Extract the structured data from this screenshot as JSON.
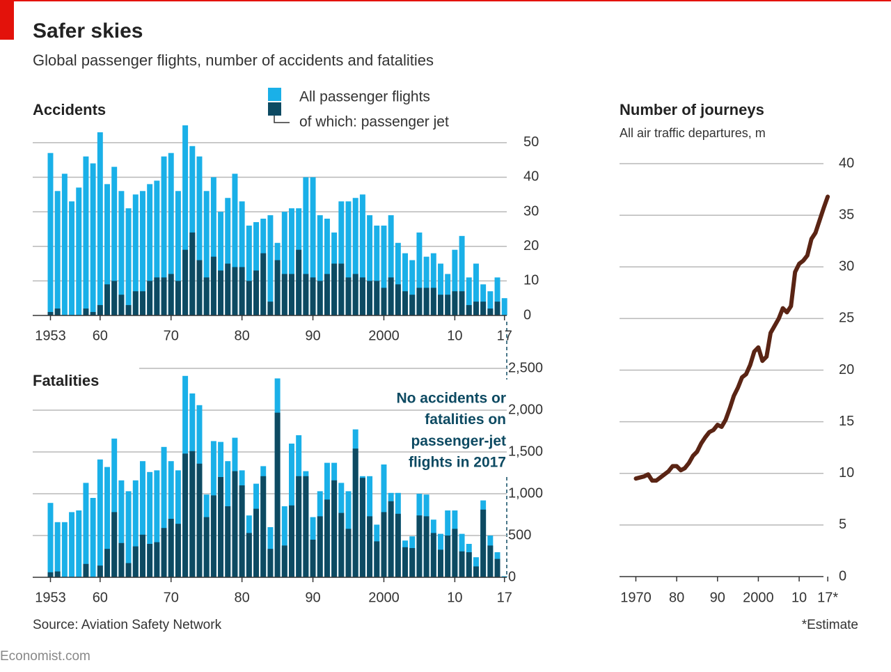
{
  "title": "Safer skies",
  "subtitle": "Global passenger flights, number of accidents and fatalities",
  "source": "Source: Aviation Safety Network",
  "note": "*Estimate",
  "brand": "Economist.com",
  "chart_data": [
    {
      "type": "bar",
      "title": "Accidents",
      "x": [
        1953,
        1954,
        1955,
        1956,
        1957,
        1958,
        1959,
        1960,
        1961,
        1962,
        1963,
        1964,
        1965,
        1966,
        1967,
        1968,
        1969,
        1970,
        1971,
        1972,
        1973,
        1974,
        1975,
        1976,
        1977,
        1978,
        1979,
        1980,
        1981,
        1982,
        1983,
        1984,
        1985,
        1986,
        1987,
        1988,
        1989,
        1990,
        1991,
        1992,
        1993,
        1994,
        1995,
        1996,
        1997,
        1998,
        1999,
        2000,
        2001,
        2002,
        2003,
        2004,
        2005,
        2006,
        2007,
        2008,
        2009,
        2010,
        2011,
        2012,
        2013,
        2014,
        2015,
        2016,
        2017
      ],
      "series": [
        {
          "name": "All passenger flights",
          "color": "#1ab0e8",
          "values": [
            47,
            36,
            41,
            33,
            37,
            46,
            44,
            53,
            38,
            43,
            36,
            31,
            35,
            36,
            38,
            39,
            46,
            47,
            36,
            55,
            49,
            46,
            36,
            40,
            30,
            34,
            41,
            33,
            26,
            27,
            28,
            29,
            21,
            30,
            31,
            31,
            40,
            40,
            29,
            28,
            24,
            33,
            33,
            34,
            35,
            29,
            26,
            26,
            29,
            21,
            18,
            16,
            24,
            17,
            18,
            15,
            12,
            19,
            23,
            11,
            15,
            9,
            7,
            11,
            5
          ]
        },
        {
          "name": "of which: passenger jet",
          "color": "#0d4a62",
          "values": [
            1,
            2,
            0,
            0,
            0,
            2,
            1,
            3,
            9,
            10,
            6,
            3,
            7,
            7,
            10,
            11,
            11,
            12,
            10,
            19,
            24,
            16,
            11,
            17,
            13,
            15,
            14,
            14,
            10,
            13,
            18,
            4,
            16,
            12,
            12,
            19,
            12,
            11,
            10,
            12,
            15,
            15,
            11,
            12,
            11,
            10,
            10,
            8,
            11,
            9,
            7,
            6,
            8,
            8,
            8,
            6,
            6,
            7,
            7,
            3,
            4,
            4,
            2,
            4,
            0
          ]
        }
      ],
      "xlim": [
        1950.5,
        2018.5
      ],
      "xticks": [
        1953,
        {
          "value": 1960,
          "label": "60"
        },
        {
          "value": 1970,
          "label": "70"
        },
        {
          "value": 1980,
          "label": "80"
        },
        {
          "value": 1990,
          "label": "90"
        },
        2000,
        {
          "value": 2010,
          "label": "10"
        },
        {
          "value": 2017,
          "label": "17"
        }
      ],
      "ylim": [
        0,
        55
      ],
      "yticks": [
        0,
        10,
        20,
        30,
        40,
        50
      ],
      "grid": true
    },
    {
      "type": "bar",
      "title": "Fatalities",
      "x": [
        1953,
        1954,
        1955,
        1956,
        1957,
        1958,
        1959,
        1960,
        1961,
        1962,
        1963,
        1964,
        1965,
        1966,
        1967,
        1968,
        1969,
        1970,
        1971,
        1972,
        1973,
        1974,
        1975,
        1976,
        1977,
        1978,
        1979,
        1980,
        1981,
        1982,
        1983,
        1984,
        1985,
        1986,
        1987,
        1988,
        1989,
        1990,
        1991,
        1992,
        1993,
        1994,
        1995,
        1996,
        1997,
        1998,
        1999,
        2000,
        2001,
        2002,
        2003,
        2004,
        2005,
        2006,
        2007,
        2008,
        2009,
        2010,
        2011,
        2012,
        2013,
        2014,
        2015,
        2016,
        2017
      ],
      "series": [
        {
          "color": "#1ab0e8",
          "values": [
            890,
            660,
            660,
            780,
            800,
            1130,
            950,
            1410,
            1320,
            1660,
            1160,
            1030,
            1160,
            1390,
            1260,
            1280,
            1560,
            1390,
            1280,
            2410,
            2200,
            2060,
            990,
            1630,
            1620,
            1390,
            1670,
            1280,
            740,
            1120,
            1330,
            600,
            2380,
            850,
            1600,
            1700,
            1270,
            720,
            1030,
            1370,
            1370,
            1130,
            1030,
            1770,
            1210,
            1210,
            630,
            1350,
            1010,
            1010,
            440,
            490,
            1000,
            990,
            690,
            520,
            800,
            800,
            520,
            400,
            240,
            920,
            500,
            300,
            13
          ]
        },
        {
          "color": "#0d4a62",
          "values": [
            60,
            70,
            0,
            0,
            0,
            160,
            0,
            140,
            340,
            780,
            410,
            170,
            370,
            510,
            400,
            420,
            590,
            700,
            640,
            1480,
            1510,
            1360,
            720,
            980,
            1200,
            850,
            1270,
            1100,
            530,
            820,
            1210,
            340,
            1970,
            380,
            860,
            1210,
            1210,
            450,
            730,
            930,
            1160,
            770,
            580,
            1540,
            1190,
            730,
            430,
            780,
            910,
            760,
            360,
            350,
            740,
            730,
            530,
            330,
            500,
            580,
            310,
            300,
            130,
            810,
            380,
            220,
            0
          ]
        }
      ],
      "annotation": [
        "No accidents or",
        "fatalities on",
        "passenger-jet",
        "flights in 2017"
      ],
      "xlim": [
        1950.5,
        2018.5
      ],
      "xticks": [
        1953,
        {
          "value": 1960,
          "label": "60"
        },
        {
          "value": 1970,
          "label": "70"
        },
        {
          "value": 1980,
          "label": "80"
        },
        {
          "value": 1990,
          "label": "90"
        },
        2000,
        {
          "value": 2010,
          "label": "10"
        },
        {
          "value": 2017,
          "label": "17"
        }
      ],
      "ylim": [
        0,
        2500
      ],
      "yticks": [
        0,
        500,
        {
          "value": 1000,
          "label": "1,000"
        },
        {
          "value": 1500,
          "label": "1,500"
        },
        {
          "value": 2000,
          "label": "2,000"
        },
        {
          "value": 2500,
          "label": "2,500"
        }
      ],
      "grid": true
    },
    {
      "type": "line",
      "title": "Number of journeys",
      "subtitle": "All air traffic departures, m",
      "x": [
        1970,
        1971,
        1972,
        1973,
        1974,
        1975,
        1976,
        1977,
        1978,
        1979,
        1980,
        1981,
        1982,
        1983,
        1984,
        1985,
        1986,
        1987,
        1988,
        1989,
        1990,
        1991,
        1992,
        1993,
        1994,
        1995,
        1996,
        1997,
        1998,
        1999,
        2000,
        2001,
        2002,
        2003,
        2004,
        2005,
        2006,
        2007,
        2008,
        2009,
        2010,
        2011,
        2012,
        2013,
        2014,
        2015,
        2016,
        2017
      ],
      "values": [
        9.5,
        9.6,
        9.7,
        9.9,
        9.3,
        9.3,
        9.6,
        9.9,
        10.2,
        10.7,
        10.7,
        10.3,
        10.5,
        11.0,
        11.7,
        12.1,
        12.9,
        13.5,
        14.0,
        14.2,
        14.7,
        14.5,
        15.2,
        16.3,
        17.5,
        18.3,
        19.3,
        19.6,
        20.5,
        21.8,
        22.2,
        20.9,
        21.3,
        23.6,
        24.3,
        25.0,
        26.0,
        25.6,
        26.2,
        29.5,
        30.3,
        30.6,
        31.1,
        32.7,
        33.3,
        34.5,
        35.7,
        36.8
      ],
      "color": "#5a2414",
      "xlim": [
        1966,
        2018
      ],
      "xticks": [
        1970,
        {
          "value": 1980,
          "label": "80"
        },
        {
          "value": 1990,
          "label": "90"
        },
        2000,
        {
          "value": 2010,
          "label": "10"
        },
        {
          "value": 2017,
          "label": "17*"
        }
      ],
      "ylim": [
        0,
        40
      ],
      "yticks": [
        0,
        5,
        10,
        15,
        20,
        25,
        30,
        35,
        40
      ],
      "grid": true
    }
  ]
}
